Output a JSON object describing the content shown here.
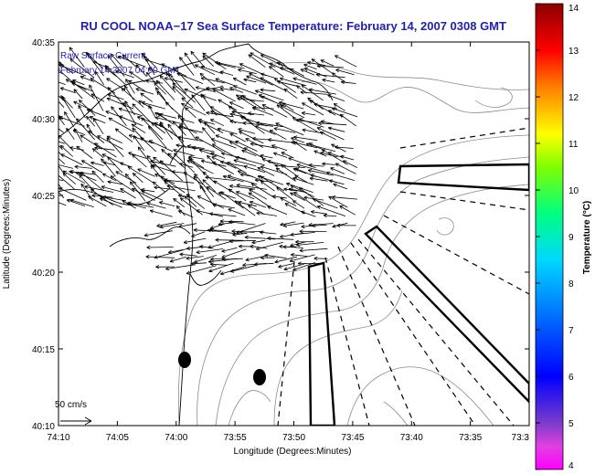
{
  "chart_data": {
    "type": "vector_field_map",
    "title": "RU COOL  NOAA−17  Sea Surface Temperature:  February 14, 2007 0308 GMT",
    "annotation_line1": "Raw Surface Current",
    "annotation_line2": "February 14 2007 04:00 GMT",
    "scale_label": "50 cm/s",
    "xlabel": "Longitude (Degrees:Minutes)",
    "ylabel": "Latitude (Degrees:Minutes)",
    "x_ticks": [
      "74:10",
      "74:05",
      "74:00",
      "73:55",
      "73:50",
      "73:45",
      "73:40",
      "73:35",
      "73:3"
    ],
    "y_ticks": [
      "40:35",
      "40:30",
      "40:25",
      "40:20",
      "40:15",
      "40:10"
    ],
    "colorbar": {
      "label": "Temperature (°C)",
      "ticks": [
        "14",
        "13",
        "12",
        "11",
        "10",
        "9",
        "8",
        "7",
        "6",
        "5",
        "4"
      ],
      "range": [
        4,
        14
      ]
    },
    "colors": {
      "title": "#1f1fb0",
      "vectors": "#000000",
      "coastline": "#000000",
      "bathymetry": "#8c8c8c"
    }
  }
}
